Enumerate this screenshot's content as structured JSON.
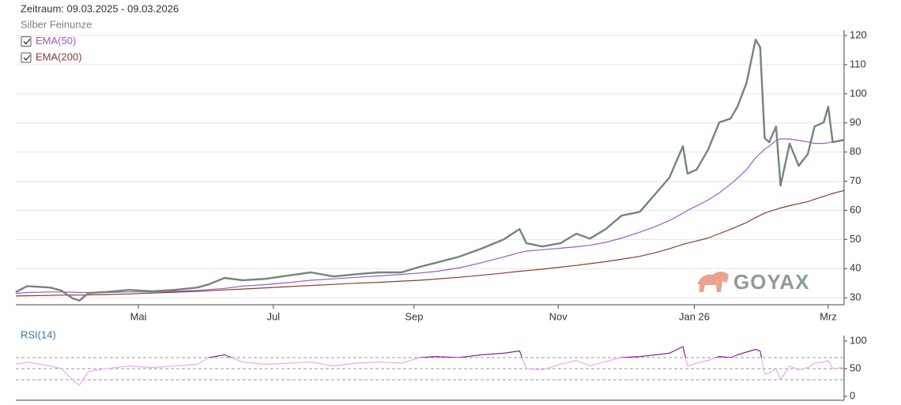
{
  "chart_data": [
    {
      "type": "line",
      "title": "Zeitraum: 09.03.2025 - 09.03.2026",
      "watermark": "GOYAX",
      "x": [
        0,
        5,
        15,
        20,
        25,
        28,
        32,
        40,
        50,
        60,
        70,
        80,
        85,
        92,
        100,
        110,
        120,
        130,
        140,
        150,
        160,
        170,
        178,
        185,
        195,
        205,
        215,
        222,
        225,
        232,
        240,
        247,
        253,
        260,
        267,
        275,
        282,
        288,
        294,
        296,
        300,
        305,
        310,
        315,
        318,
        322,
        326,
        328,
        330,
        332,
        335,
        337,
        341,
        345,
        349,
        352,
        356,
        358,
        360,
        365
      ],
      "xlim": [
        0,
        365
      ],
      "xticks": [
        {
          "value": 54,
          "label": "Mai"
        },
        {
          "value": 113.5,
          "label": "Jul"
        },
        {
          "value": 175.5,
          "label": "Sep"
        },
        {
          "value": 239,
          "label": "Nov"
        },
        {
          "value": 299,
          "label": "Jan 26"
        },
        {
          "value": 358,
          "label": "Mrz"
        }
      ],
      "ylim": [
        27.6,
        121.9
      ],
      "yticks": [
        30,
        40,
        50,
        60,
        70,
        80,
        90,
        100,
        110,
        120
      ],
      "grid": true,
      "series": [
        {
          "name": "Silber Feinunze",
          "color": "#74857a",
          "width": 2.4,
          "values": [
            32,
            34,
            33.5,
            32.5,
            29.8,
            29,
            31.6,
            32,
            32.7,
            32.2,
            32.7,
            33.5,
            34.6,
            36.8,
            36,
            36.5,
            37.6,
            38.7,
            37.3,
            38.1,
            38.7,
            38.7,
            40.6,
            42,
            44,
            46.8,
            50,
            53.6,
            48.7,
            47.6,
            48.7,
            52,
            50.3,
            53.6,
            58.2,
            59.5,
            65.8,
            71.2,
            82,
            72.6,
            74,
            80.7,
            90.2,
            91.5,
            95.6,
            103.7,
            118.6,
            116,
            84.8,
            83.4,
            88.8,
            68.5,
            82.9,
            75.3,
            79.3,
            88.8,
            90.2,
            95.6,
            83.4,
            84.2
          ]
        },
        {
          "name": "EMA(50)",
          "color": "#9a5cc6",
          "width": 1.2,
          "checked": true,
          "values": [
            31.5,
            31.8,
            32,
            32,
            31.9,
            31.8,
            31.8,
            31.8,
            32,
            32,
            32.2,
            32.5,
            32.8,
            33.2,
            34,
            34.5,
            35.2,
            36,
            36.5,
            37,
            37.5,
            38,
            38.5,
            39,
            40.2,
            42,
            44,
            45.5,
            46,
            46.5,
            47,
            47.5,
            48,
            49,
            50.5,
            52.5,
            54.5,
            56.5,
            59,
            60,
            61.5,
            63.5,
            66,
            69,
            71,
            74,
            78,
            79.5,
            81,
            82,
            84,
            84.5,
            84.5,
            84,
            83.5,
            83,
            83,
            83.2,
            83.5,
            84
          ]
        },
        {
          "name": "EMA(200)",
          "color": "#8a3b30",
          "width": 1.2,
          "checked": true,
          "values": [
            30.6,
            30.7,
            30.8,
            30.9,
            30.9,
            30.9,
            31,
            31.1,
            31.3,
            31.6,
            31.9,
            32.2,
            32.4,
            32.7,
            33,
            33.4,
            33.8,
            34.2,
            34.6,
            35,
            35.3,
            35.7,
            36,
            36.4,
            37,
            37.7,
            38.5,
            39.1,
            39.3,
            39.8,
            40.5,
            41.1,
            41.7,
            42.4,
            43.2,
            44.2,
            45.5,
            46.8,
            48.3,
            48.7,
            49.5,
            50.5,
            52,
            53.5,
            54.5,
            55.8,
            57.5,
            58.3,
            59,
            59.6,
            60.3,
            60.8,
            61.6,
            62.3,
            63,
            63.8,
            64.8,
            65.3,
            65.8,
            66.8
          ]
        }
      ]
    },
    {
      "type": "line",
      "title": "RSI(14)",
      "ylim": [
        -7.1,
        110
      ],
      "yticks": [
        0,
        50,
        100
      ],
      "guides": [
        30,
        50,
        70
      ],
      "color": "#f0a8f0",
      "overbought_color": "#8e1f9e",
      "values": [
        58,
        62,
        55,
        50,
        30,
        20,
        45,
        50,
        55,
        52,
        55,
        58,
        70,
        75,
        62,
        58,
        60,
        62,
        55,
        60,
        62,
        60,
        70,
        72,
        70,
        75,
        78,
        82,
        50,
        48,
        58,
        65,
        55,
        63,
        70,
        72,
        75,
        78,
        90,
        55,
        60,
        65,
        72,
        70,
        75,
        80,
        85,
        82,
        40,
        42,
        50,
        30,
        55,
        48,
        52,
        60,
        62,
        65,
        50,
        52
      ]
    }
  ]
}
